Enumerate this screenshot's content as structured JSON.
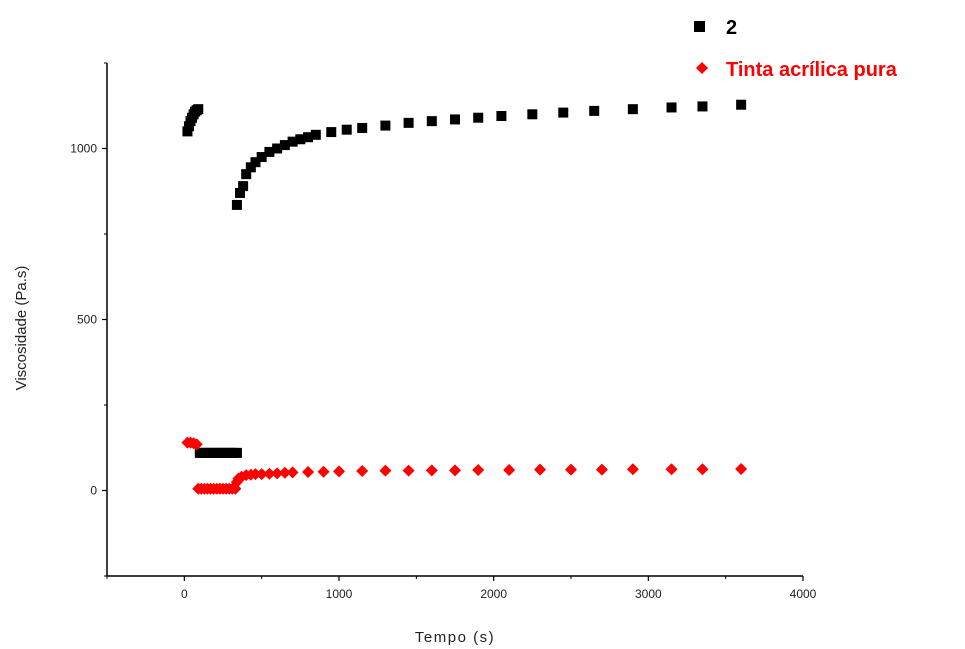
{
  "chart_data": {
    "type": "scatter",
    "title": "",
    "xlabel": "Tempo (s)",
    "ylabel": "Viscosidade (Pa.s)",
    "xlim": [
      -500,
      4000
    ],
    "ylim": [
      -250,
      1250
    ],
    "xticks": [
      0,
      1000,
      2000,
      3000,
      4000
    ],
    "xtick_labels": [
      "0",
      "1000",
      "2000",
      "3000",
      "4000"
    ],
    "yticks": [
      0,
      500,
      1000
    ],
    "ytick_labels": [
      "0",
      "500",
      "1000"
    ],
    "grid": false,
    "legend_position": "top-right",
    "series": [
      {
        "name": "2",
        "color": "#000000",
        "marker": "square",
        "points": [
          [
            20,
            1050
          ],
          [
            30,
            1065
          ],
          [
            40,
            1080
          ],
          [
            50,
            1090
          ],
          [
            60,
            1100
          ],
          [
            70,
            1108
          ],
          [
            80,
            1112
          ],
          [
            90,
            1115
          ],
          [
            100,
            110
          ],
          [
            120,
            110
          ],
          [
            140,
            110
          ],
          [
            160,
            110
          ],
          [
            180,
            110
          ],
          [
            200,
            110
          ],
          [
            220,
            110
          ],
          [
            240,
            110
          ],
          [
            260,
            110
          ],
          [
            280,
            110
          ],
          [
            300,
            110
          ],
          [
            320,
            110
          ],
          [
            340,
            110
          ],
          [
            340,
            835
          ],
          [
            360,
            870
          ],
          [
            380,
            890
          ],
          [
            400,
            925
          ],
          [
            430,
            945
          ],
          [
            460,
            960
          ],
          [
            500,
            975
          ],
          [
            550,
            990
          ],
          [
            600,
            1000
          ],
          [
            650,
            1010
          ],
          [
            700,
            1020
          ],
          [
            750,
            1027
          ],
          [
            800,
            1033
          ],
          [
            850,
            1040
          ],
          [
            950,
            1048
          ],
          [
            1050,
            1055
          ],
          [
            1150,
            1060
          ],
          [
            1300,
            1067
          ],
          [
            1450,
            1075
          ],
          [
            1600,
            1080
          ],
          [
            1750,
            1085
          ],
          [
            1900,
            1090
          ],
          [
            2050,
            1095
          ],
          [
            2250,
            1100
          ],
          [
            2450,
            1105
          ],
          [
            2650,
            1110
          ],
          [
            2900,
            1115
          ],
          [
            3150,
            1120
          ],
          [
            3350,
            1123
          ],
          [
            3600,
            1128
          ]
        ]
      },
      {
        "name": "Tinta acrílica pura",
        "color": "#ff0000",
        "marker": "diamond",
        "points": [
          [
            20,
            140
          ],
          [
            40,
            140
          ],
          [
            60,
            138
          ],
          [
            80,
            135
          ],
          [
            90,
            5
          ],
          [
            110,
            5
          ],
          [
            130,
            5
          ],
          [
            150,
            5
          ],
          [
            170,
            5
          ],
          [
            190,
            5
          ],
          [
            210,
            5
          ],
          [
            230,
            5
          ],
          [
            250,
            5
          ],
          [
            270,
            5
          ],
          [
            290,
            5
          ],
          [
            310,
            5
          ],
          [
            330,
            5
          ],
          [
            340,
            25
          ],
          [
            350,
            35
          ],
          [
            370,
            40
          ],
          [
            400,
            45
          ],
          [
            430,
            46
          ],
          [
            460,
            48
          ],
          [
            500,
            48
          ],
          [
            550,
            49
          ],
          [
            600,
            50
          ],
          [
            650,
            52
          ],
          [
            700,
            53
          ],
          [
            800,
            54
          ],
          [
            900,
            55
          ],
          [
            1000,
            56
          ],
          [
            1150,
            57
          ],
          [
            1300,
            58
          ],
          [
            1450,
            58
          ],
          [
            1600,
            59
          ],
          [
            1750,
            59
          ],
          [
            1900,
            60
          ],
          [
            2100,
            60
          ],
          [
            2300,
            61
          ],
          [
            2500,
            61
          ],
          [
            2700,
            61
          ],
          [
            2900,
            62
          ],
          [
            3150,
            62
          ],
          [
            3350,
            62
          ],
          [
            3600,
            63
          ]
        ]
      }
    ]
  }
}
